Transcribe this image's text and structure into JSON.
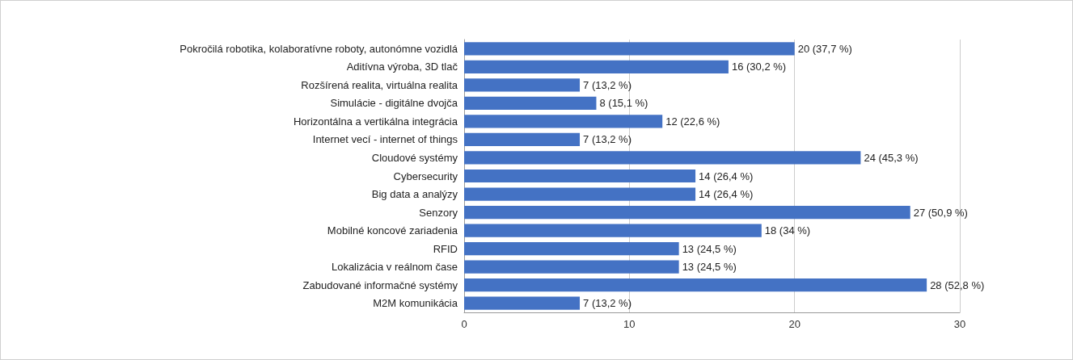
{
  "chart_data": {
    "type": "bar",
    "orientation": "horizontal",
    "categories": [
      "Pokročilá robotika, kolaboratívne roboty, autonómne vozidlá",
      "Aditívna výroba, 3D tlač",
      "Rozšírená realita, virtuálna realita",
      "Simulácie - digitálne dvojča",
      "Horizontálna a vertikálna integrácia",
      "Internet vecí - internet of things",
      "Cloudové systémy",
      "Cybersecurity",
      "Big data a analýzy",
      "Senzory",
      "Mobilné koncové zariadenia",
      "RFID",
      "Lokalizácia v reálnom čase",
      "Zabudované informačné systémy",
      "M2M komunikácia"
    ],
    "values": [
      20,
      16,
      7,
      8,
      12,
      7,
      24,
      14,
      14,
      27,
      18,
      13,
      13,
      28,
      7
    ],
    "value_labels": [
      "20 (37,7 %)",
      "16 (30,2 %)",
      "7 (13,2 %)",
      "8 (15,1 %)",
      "12 (22,6 %)",
      "7 (13,2 %)",
      "24 (45,3 %)",
      "14 (26,4 %)",
      "14 (26,4 %)",
      "27 (50,9 %)",
      "18 (34 %)",
      "13 (24,5 %)",
      "13 (24,5 %)",
      "28 (52,8 %)",
      "7 (13,2 %)"
    ],
    "color": "#4472c4",
    "xlim": [
      0,
      30
    ],
    "xticks": [
      0,
      10,
      20,
      30
    ],
    "grid": "x"
  }
}
